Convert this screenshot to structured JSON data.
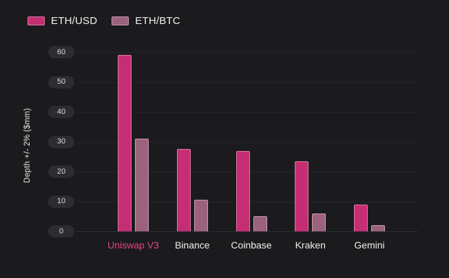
{
  "legend": {
    "items": [
      {
        "label": "ETH/USD",
        "color": "#c52e73",
        "border": "#df7aa8"
      },
      {
        "label": "ETH/BTC",
        "color": "#9a627c",
        "border": "#cf9cb6"
      }
    ]
  },
  "chart_data": {
    "type": "bar",
    "title": "",
    "xlabel": "",
    "ylabel": "Depth +/- 2% ($mm)",
    "categories": [
      "Uniswap V3",
      "Binance",
      "Coinbase",
      "Kraken",
      "Gemini"
    ],
    "series": [
      {
        "name": "ETH/USD",
        "color": "#c52e73",
        "border_color": "#df7aa8",
        "values": [
          59,
          27.5,
          27,
          23.5,
          9
        ]
      },
      {
        "name": "ETH/BTC",
        "color": "#9a627c",
        "border_color": "#cf9cb6",
        "values": [
          31,
          10.5,
          5,
          6,
          2
        ]
      }
    ],
    "ylim": [
      0,
      60
    ],
    "yticks": [
      0,
      10,
      20,
      30,
      40,
      50,
      60
    ],
    "grid": "horizontal",
    "legend_position": "top-left",
    "background": "#1b1b1e",
    "highlighted_category": "Uniswap V3",
    "highlight_color": "#e8457f",
    "category_label_color": "#f0f0f0"
  }
}
